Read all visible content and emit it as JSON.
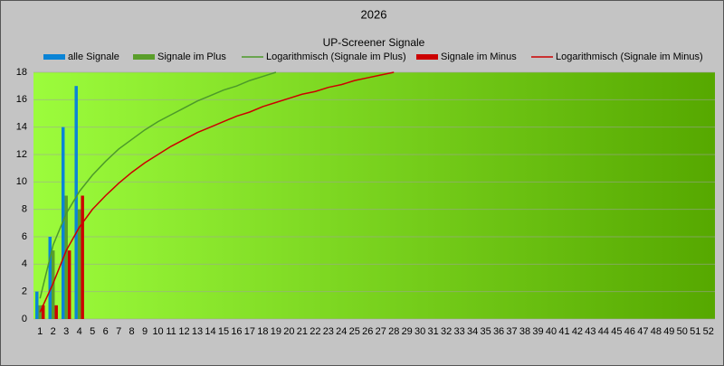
{
  "chart_data": {
    "type": "bar",
    "title": "2026",
    "subtitle": "UP-Screener Signale",
    "categories": [
      "1",
      "2",
      "3",
      "4",
      "5",
      "6",
      "7",
      "8",
      "9",
      "10",
      "11",
      "12",
      "13",
      "14",
      "15",
      "16",
      "17",
      "18",
      "19",
      "20",
      "21",
      "22",
      "23",
      "24",
      "25",
      "26",
      "27",
      "28",
      "29",
      "30",
      "31",
      "32",
      "33",
      "34",
      "35",
      "36",
      "37",
      "38",
      "39",
      "40",
      "41",
      "42",
      "43",
      "44",
      "45",
      "46",
      "47",
      "48",
      "49",
      "50",
      "51",
      "52"
    ],
    "series": [
      {
        "name": "alle Signale",
        "type": "bar",
        "color": "#0a84d6",
        "values": [
          2,
          6,
          14,
          17,
          null,
          null,
          null,
          null,
          null,
          null,
          null,
          null,
          null,
          null,
          null,
          null,
          null,
          null,
          null,
          null,
          null,
          null,
          null,
          null,
          null,
          null,
          null,
          null,
          null,
          null,
          null,
          null,
          null,
          null,
          null,
          null,
          null,
          null,
          null,
          null,
          null,
          null,
          null,
          null,
          null,
          null,
          null,
          null,
          null,
          null,
          null,
          null
        ]
      },
      {
        "name": "Signale im Plus",
        "type": "bar",
        "color": "#5a9e2a",
        "values": [
          1,
          5,
          9,
          8,
          null,
          null,
          null,
          null,
          null,
          null,
          null,
          null,
          null,
          null,
          null,
          null,
          null,
          null,
          null,
          null,
          null,
          null,
          null,
          null,
          null,
          null,
          null,
          null,
          null,
          null,
          null,
          null,
          null,
          null,
          null,
          null,
          null,
          null,
          null,
          null,
          null,
          null,
          null,
          null,
          null,
          null,
          null,
          null,
          null,
          null,
          null,
          null
        ]
      },
      {
        "name": "Logarithmisch (Signale im Plus)",
        "type": "line",
        "color": "#4c9a2a",
        "values": [
          1.5,
          5.4,
          7.7,
          9.3,
          10.5,
          11.5,
          12.4,
          13.1,
          13.8,
          14.4,
          14.9,
          15.4,
          15.9,
          16.3,
          16.7,
          17.0,
          17.4,
          17.7,
          18.0,
          null,
          null,
          null,
          null,
          null,
          null,
          null,
          null,
          null,
          null,
          null,
          null,
          null,
          null,
          null,
          null,
          null,
          null,
          null,
          null,
          null,
          null,
          null,
          null,
          null,
          null,
          null,
          null,
          null,
          null,
          null,
          null,
          null
        ]
      },
      {
        "name": "Signale im Minus",
        "type": "bar",
        "color": "#cc0000",
        "values": [
          1,
          1,
          5,
          9,
          null,
          null,
          null,
          null,
          null,
          null,
          null,
          null,
          null,
          null,
          null,
          null,
          null,
          null,
          null,
          null,
          null,
          null,
          null,
          null,
          null,
          null,
          null,
          null,
          null,
          null,
          null,
          null,
          null,
          null,
          null,
          null,
          null,
          null,
          null,
          null,
          null,
          null,
          null,
          null,
          null,
          null,
          null,
          null,
          null,
          null,
          null,
          null
        ]
      },
      {
        "name": "Logarithmisch (Signale im Minus)",
        "type": "line",
        "color": "#cc0000",
        "values": [
          0.5,
          2.6,
          5.0,
          6.7,
          8.0,
          9.0,
          9.9,
          10.7,
          11.4,
          12.0,
          12.6,
          13.1,
          13.6,
          14.0,
          14.4,
          14.8,
          15.1,
          15.5,
          15.8,
          16.1,
          16.4,
          16.6,
          16.9,
          17.1,
          17.4,
          17.6,
          17.8,
          18.0,
          null,
          null,
          null,
          null,
          null,
          null,
          null,
          null,
          null,
          null,
          null,
          null,
          null,
          null,
          null,
          null,
          null,
          null,
          null,
          null,
          null,
          null,
          null,
          null
        ]
      }
    ],
    "ylim": [
      0,
      18
    ],
    "yticks": [
      0,
      2,
      4,
      6,
      8,
      10,
      12,
      14,
      16,
      18
    ],
    "grid": true,
    "legend": "top"
  }
}
